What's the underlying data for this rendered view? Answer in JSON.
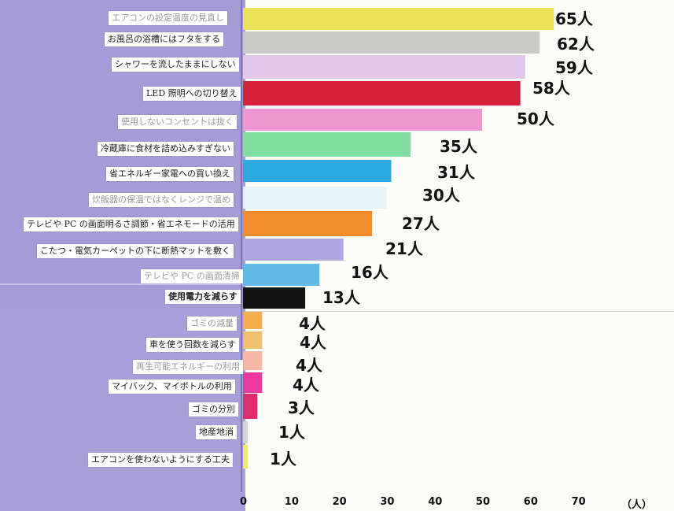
{
  "chart_data": {
    "type": "bar",
    "orientation": "horizontal",
    "categories": [
      "エアコンの設定温度の見直し",
      "お風呂の浴槽にはフタをする",
      "シャワーを流したままにしない",
      "LED 照明への切り替え",
      "使用しないコンセントは抜く",
      "冷蔵庫に食材を詰め込みすぎない",
      "省エネルギー家電への買い換え",
      "炊飯器の保温ではなくレンジで温め",
      "テレビや PC の画面明るさ調節・省エネモードの活用",
      "こたつ・電気カーペットの下に断熱マットを敷く",
      "テレビや PC の画面清掃",
      "使用電力を減らす",
      "ゴミの減量",
      "車を使う回数を減らす",
      "再生可能エネルギーの利用",
      "マイバック、マイボトルの利用",
      "ゴミの分別",
      "地産地消",
      "エアコンを使わないようにする工夫"
    ],
    "values": [
      65,
      62,
      59,
      58,
      50,
      35,
      31,
      30,
      27,
      21,
      16,
      13,
      4,
      4,
      4,
      4,
      3,
      1,
      1
    ],
    "value_labels": [
      "65人",
      "62人",
      "59人",
      "58人",
      "50人",
      "35人",
      "31人",
      "30人",
      "27人",
      "21人",
      "16人",
      "13人",
      "4人",
      "4人",
      "4人",
      "4人",
      "3人",
      "1人",
      "1人"
    ],
    "colors": [
      "#ece35a",
      "#c9c9c7",
      "#e3c6ea",
      "#d6203a",
      "#ef97cf",
      "#83dc9f",
      "#2ea8e0",
      "#e3f3f7",
      "#f28b2c",
      "#b1a7e0",
      "#63b9e6",
      "#141414",
      "#f3ae4e",
      "#f0bf6e",
      "#f6b7a4",
      "#ea3b9f",
      "#e02c6c",
      "#d4d4d4",
      "#f1ea6c"
    ],
    "x_ticks": [
      "0",
      "10",
      "20",
      "30",
      "40",
      "50",
      "60",
      "70",
      "（人）"
    ],
    "xlim": [
      0,
      80
    ],
    "legend": "none",
    "grid": false
  }
}
